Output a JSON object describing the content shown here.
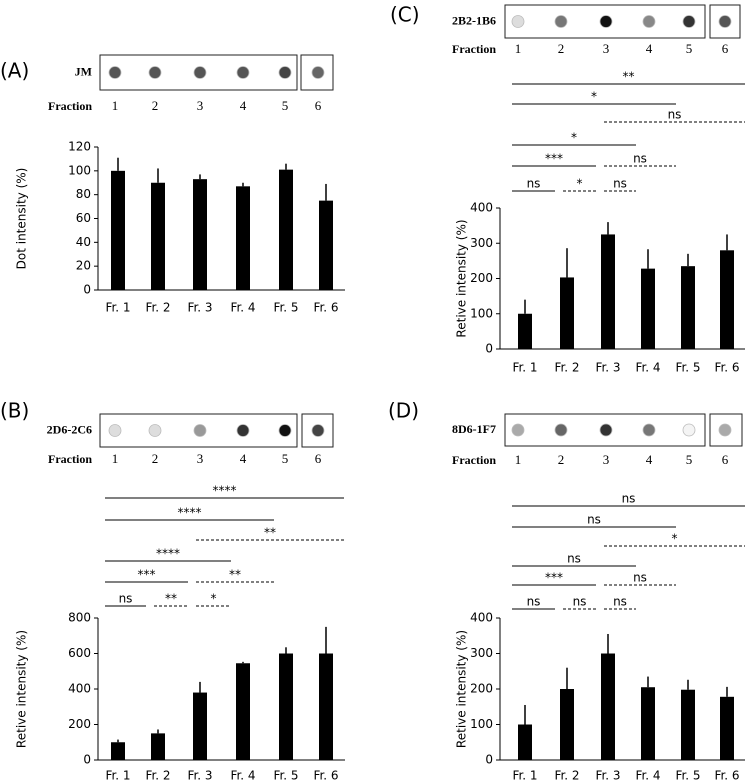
{
  "chart_data": [
    {
      "type": "bar",
      "panel": "(A)",
      "blot_label": "JM",
      "fraction_label": "Fraction",
      "fractions": [
        "1",
        "2",
        "3",
        "4",
        "5",
        "6"
      ],
      "ylabel": "Dot intensity (%)",
      "categories": [
        "Fr. 1",
        "Fr. 2",
        "Fr. 3",
        "Fr. 4",
        "Fr. 5",
        "Fr. 6"
      ],
      "values": [
        100,
        90,
        93,
        87,
        101,
        75
      ],
      "errors": [
        11,
        12,
        4,
        3,
        5,
        14
      ],
      "color": "#000000",
      "ylim": [
        0,
        120
      ],
      "yticks": [
        0,
        20,
        40,
        60,
        80,
        100,
        120
      ],
      "comparisons": []
    },
    {
      "type": "bar",
      "panel": "(B)",
      "blot_label": "2D6-2C6",
      "fraction_label": "Fraction",
      "fractions": [
        "1",
        "2",
        "3",
        "4",
        "5",
        "6"
      ],
      "ylabel": "Retive intensity (%)",
      "categories": [
        "Fr. 1",
        "Fr. 2",
        "Fr. 3",
        "Fr. 4",
        "Fr. 5",
        "Fr. 6"
      ],
      "values": [
        100,
        150,
        380,
        545,
        600,
        600
      ],
      "errors": [
        15,
        22,
        60,
        8,
        35,
        150
      ],
      "color": "#000000",
      "ylim": [
        0,
        800
      ],
      "yticks": [
        0,
        200,
        400,
        600,
        800
      ],
      "comparisons": [
        [
          {
            "label": "****",
            "from": "Fr. 1",
            "to": "Fr. 6",
            "line": "solid"
          }
        ],
        [
          {
            "label": "****",
            "from": "Fr. 1",
            "to": "Fr. 5",
            "line": "solid"
          }
        ],
        [
          {
            "label": "**",
            "from": "Fr. 3",
            "to": "Fr. 6",
            "line": "dashed"
          }
        ],
        [
          {
            "label": "****",
            "from": "Fr. 1",
            "to": "Fr. 4",
            "line": "solid"
          }
        ],
        [
          {
            "label": "***",
            "from": "Fr. 1",
            "to": "Fr. 3",
            "line": "solid"
          },
          {
            "label": "**",
            "from": "Fr. 3",
            "to": "Fr. 5",
            "line": "dashed"
          }
        ],
        [
          {
            "label": "ns",
            "from": "Fr. 1",
            "to": "Fr. 2",
            "line": "solid"
          },
          {
            "label": "**",
            "from": "Fr. 2",
            "to": "Fr. 3",
            "line": "dashed"
          },
          {
            "label": "*",
            "from": "Fr. 3",
            "to": "Fr. 4",
            "line": "dashed"
          }
        ]
      ]
    },
    {
      "type": "bar",
      "panel": "(C)",
      "blot_label": "2B2-1B6",
      "fraction_label": "Fraction",
      "fractions": [
        "1",
        "2",
        "3",
        "4",
        "5",
        "6"
      ],
      "ylabel": "Retive intensity (%)",
      "categories": [
        "Fr. 1",
        "Fr. 2",
        "Fr. 3",
        "Fr. 4",
        "Fr. 5",
        "Fr. 6"
      ],
      "values": [
        100,
        203,
        325,
        228,
        235,
        280
      ],
      "errors": [
        40,
        83,
        35,
        55,
        35,
        45
      ],
      "color": "#000000",
      "ylim": [
        0,
        400
      ],
      "yticks": [
        0,
        100,
        200,
        300,
        400
      ],
      "comparisons": [
        [
          {
            "label": "**",
            "from": "Fr. 1",
            "to": "Fr. 6",
            "line": "solid"
          }
        ],
        [
          {
            "label": "*",
            "from": "Fr. 1",
            "to": "Fr. 5",
            "line": "solid"
          }
        ],
        [
          {
            "label": "ns",
            "from": "Fr. 3",
            "to": "Fr. 6",
            "line": "dashed"
          }
        ],
        [
          {
            "label": "*",
            "from": "Fr. 1",
            "to": "Fr. 4",
            "line": "solid"
          }
        ],
        [
          {
            "label": "***",
            "from": "Fr. 1",
            "to": "Fr. 3",
            "line": "solid"
          },
          {
            "label": "ns",
            "from": "Fr. 3",
            "to": "Fr. 5",
            "line": "dashed"
          }
        ],
        [
          {
            "label": "ns",
            "from": "Fr. 1",
            "to": "Fr. 2",
            "line": "solid"
          },
          {
            "label": "*",
            "from": "Fr. 2",
            "to": "Fr. 3",
            "line": "dashed"
          },
          {
            "label": "ns",
            "from": "Fr. 3",
            "to": "Fr. 4",
            "line": "dashed"
          }
        ]
      ]
    },
    {
      "type": "bar",
      "panel": "(D)",
      "blot_label": "8D6-1F7",
      "fraction_label": "Fraction",
      "fractions": [
        "1",
        "2",
        "3",
        "4",
        "5",
        "6"
      ],
      "ylabel": "Retive intensity (%)",
      "categories": [
        "Fr. 1",
        "Fr. 2",
        "Fr. 3",
        "Fr. 4",
        "Fr. 5",
        "Fr. 6"
      ],
      "values": [
        100,
        200,
        300,
        205,
        198,
        178
      ],
      "errors": [
        55,
        60,
        55,
        30,
        28,
        28
      ],
      "color": "#000000",
      "ylim": [
        0,
        400
      ],
      "yticks": [
        0,
        100,
        200,
        300,
        400
      ],
      "comparisons": [
        [
          {
            "label": "ns",
            "from": "Fr. 1",
            "to": "Fr. 6",
            "line": "solid"
          }
        ],
        [
          {
            "label": "ns",
            "from": "Fr. 1",
            "to": "Fr. 5",
            "line": "solid"
          }
        ],
        [
          {
            "label": "*",
            "from": "Fr. 3",
            "to": "Fr. 6",
            "line": "dashed"
          }
        ],
        [
          {
            "label": "ns",
            "from": "Fr. 1",
            "to": "Fr. 4",
            "line": "solid"
          }
        ],
        [
          {
            "label": "***",
            "from": "Fr. 1",
            "to": "Fr. 3",
            "line": "solid"
          },
          {
            "label": "ns",
            "from": "Fr. 3",
            "to": "Fr. 5",
            "line": "dashed"
          }
        ],
        [
          {
            "label": "ns",
            "from": "Fr. 1",
            "to": "Fr. 2",
            "line": "solid"
          },
          {
            "label": "ns",
            "from": "Fr. 2",
            "to": "Fr. 3",
            "line": "dashed"
          },
          {
            "label": "ns",
            "from": "Fr. 3",
            "to": "Fr. 4",
            "line": "dashed"
          }
        ]
      ]
    }
  ]
}
